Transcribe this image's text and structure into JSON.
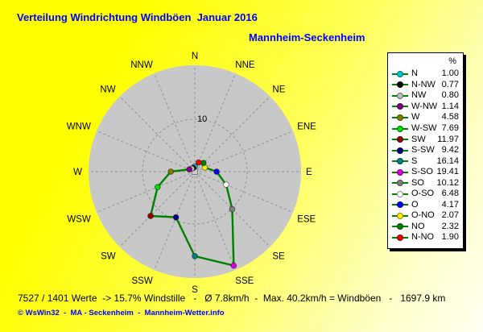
{
  "colors": {
    "background_top": "#ffff00",
    "background_mid": "#ffff55",
    "background_low": "#ffffc4",
    "background_bottom": "#fffff2",
    "title": "#0000ff",
    "disc": "#c8c8c8",
    "grid": "#909090",
    "line": "#008000",
    "legend_bg": "#ffffff",
    "legend_border": "#000000"
  },
  "header": {
    "title": "Verteilung Windrichtung Windböen  Januar 2016",
    "subtitle": "Mannheim-Seckenheim"
  },
  "chart_data": {
    "type": "radar",
    "title": "Verteilung Windrichtung Windböen Januar 2016",
    "station": "Mannheim-Seckenheim",
    "unit": "%",
    "grid": true,
    "legend_position": "right",
    "legend_header": "%",
    "max_radius": 20,
    "ring_value": 10,
    "ring_label": "10",
    "series_line_color": "#008000",
    "directions": [
      {
        "legend_label": "N",
        "axis_label": "N",
        "angle_deg": 0,
        "value": 1.0,
        "color": "#00cccc"
      },
      {
        "legend_label": "N-NW",
        "axis_label": "NNW",
        "angle_deg": 337.5,
        "value": 0.77,
        "color": "#000000"
      },
      {
        "legend_label": "NW",
        "axis_label": "NW",
        "angle_deg": 315,
        "value": 0.8,
        "color": "#c0c0c0"
      },
      {
        "legend_label": "W-NW",
        "axis_label": "WNW",
        "angle_deg": 292.5,
        "value": 1.14,
        "color": "#800080"
      },
      {
        "legend_label": "W",
        "axis_label": "W",
        "angle_deg": 270,
        "value": 4.58,
        "color": "#808000"
      },
      {
        "legend_label": "W-SW",
        "axis_label": "WSW",
        "angle_deg": 247.5,
        "value": 7.69,
        "color": "#00dd00"
      },
      {
        "legend_label": "SW",
        "axis_label": "SW",
        "angle_deg": 225,
        "value": 11.97,
        "color": "#990000"
      },
      {
        "legend_label": "S-SW",
        "axis_label": "SSW",
        "angle_deg": 202.5,
        "value": 9.42,
        "color": "#000080"
      },
      {
        "legend_label": "S",
        "axis_label": "S",
        "angle_deg": 180,
        "value": 16.14,
        "color": "#008080"
      },
      {
        "legend_label": "S-SO",
        "axis_label": "SSE",
        "angle_deg": 157.5,
        "value": 19.41,
        "color": "#dd00dd"
      },
      {
        "legend_label": "SO",
        "axis_label": "SE",
        "angle_deg": 135,
        "value": 10.12,
        "color": "#808080"
      },
      {
        "legend_label": "O-SO",
        "axis_label": "ESE",
        "angle_deg": 112.5,
        "value": 6.48,
        "color": "#ffffff"
      },
      {
        "legend_label": "O",
        "axis_label": "E",
        "angle_deg": 90,
        "value": 4.17,
        "color": "#0000ff"
      },
      {
        "legend_label": "O-NO",
        "axis_label": "ENE",
        "angle_deg": 67.5,
        "value": 2.07,
        "color": "#ffee00"
      },
      {
        "legend_label": "NO",
        "axis_label": "NE",
        "angle_deg": 45,
        "value": 2.32,
        "color": "#008000"
      },
      {
        "legend_label": "N-NO",
        "axis_label": "NNE",
        "angle_deg": 22.5,
        "value": 1.9,
        "color": "#ee0000"
      }
    ]
  },
  "footer": {
    "stats": "7527 / 1401 Werte  -> 15.7% Windstille   -   Ø 7.8km/h  -  Max. 40.2km/h = Windböen   -   1697.9 km",
    "credit": "© WsWin32  -  MA - Seckenheim  -  Mannheim-Wetter.info"
  }
}
